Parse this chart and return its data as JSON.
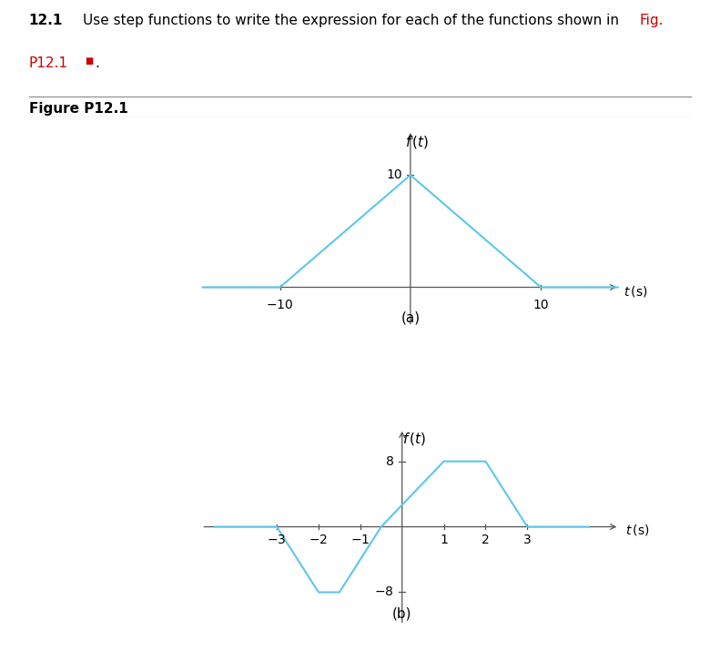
{
  "graph_a": {
    "points_x": [
      -16,
      -10,
      0,
      10,
      16
    ],
    "points_y": [
      0,
      0,
      10,
      0,
      0
    ],
    "xticks": [
      -10,
      10
    ],
    "ytick_val": 10,
    "xlim": [
      -16,
      16
    ],
    "ylim": [
      -3.5,
      14
    ],
    "color": "#5BC8E8",
    "label": "(a)"
  },
  "graph_b": {
    "points_x": [
      -4.5,
      -3,
      -2,
      -1.5,
      -0.5,
      1,
      2,
      3,
      4.5
    ],
    "points_y": [
      0,
      0,
      -8,
      -8,
      0,
      8,
      8,
      0,
      0
    ],
    "xticks": [
      -3,
      -2,
      -1,
      1,
      2,
      3
    ],
    "yticks": [
      8,
      -8
    ],
    "xlim": [
      -4.8,
      5.2
    ],
    "ylim": [
      -12,
      12
    ],
    "color": "#5BC8E8",
    "label": "(b)"
  },
  "axis_color": "#555555",
  "text_color": "#000000",
  "red_color": "#CC0000",
  "bg_color": "#FFFFFF",
  "header_line1_black": "12.1 Use step functions to write the expression for each of the functions shown in ",
  "header_line1_red": "Fig.",
  "header_line2_red": "P12.1",
  "header_line2_black": ".",
  "figure_label": "Figure P12.1"
}
